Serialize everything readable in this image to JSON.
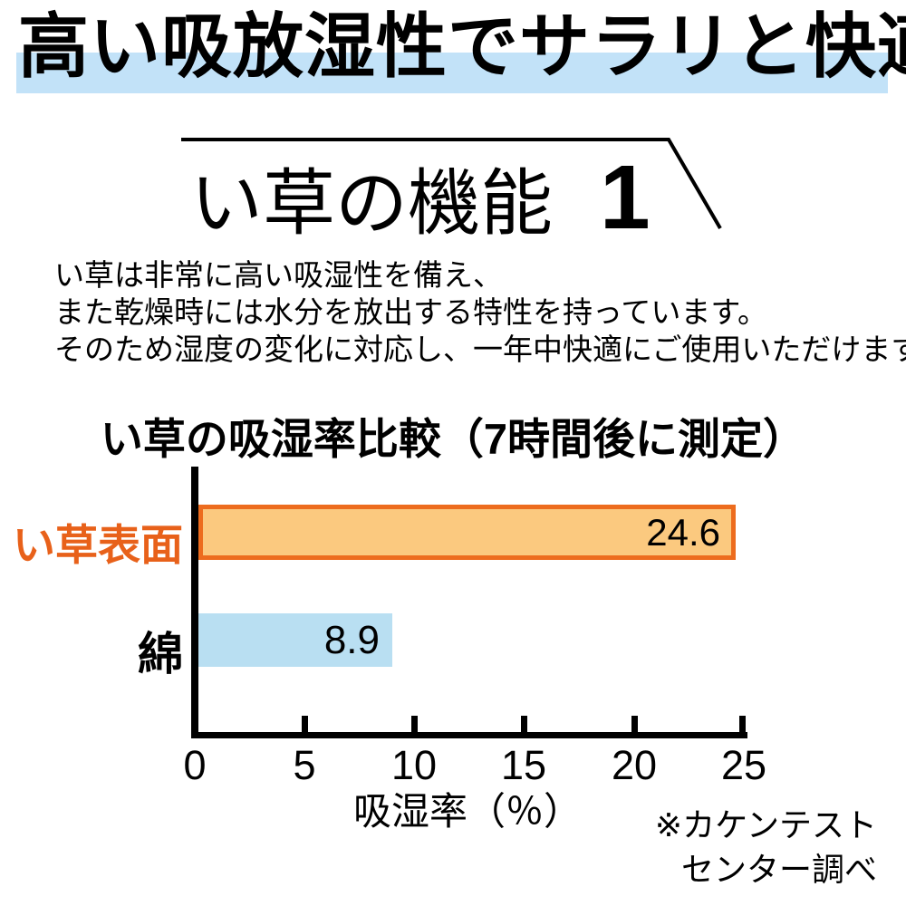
{
  "header": {
    "headline": "高い吸放湿性でサラリと快適。",
    "highlight_color": "#C2E2F8"
  },
  "feature_title": {
    "text": "い草の機能",
    "number": "1"
  },
  "intro": {
    "lines": [
      "い草は非常に高い吸湿性を備え、",
      "また乾燥時には水分を放出する特性を持っています。",
      "そのため湿度の変化に対応し、一年中快適にご使用いただけます。"
    ]
  },
  "chart": {
    "title": "い草の吸湿率比較（7時間後に測定）",
    "xlabel": "吸湿率（％）",
    "ticks": [
      "0",
      "5",
      "10",
      "15",
      "20",
      "25"
    ],
    "bars": [
      {
        "label": "い草表面",
        "value": "24.6",
        "fill": "#FBC97F",
        "border": "#ED6C1E",
        "label_color": "#E8611A"
      },
      {
        "label": "綿",
        "value": "8.9",
        "fill": "#B9DFF2",
        "border": "none",
        "label_color": "#000000"
      }
    ],
    "note_lines": [
      "※カケンテスト",
      "センター調べ"
    ]
  },
  "chart_data": {
    "type": "bar",
    "orientation": "horizontal",
    "title": "い草の吸湿率比較（7時間後に測定）",
    "categories": [
      "い草表面",
      "綿"
    ],
    "values": [
      24.6,
      8.9
    ],
    "xlabel": "吸湿率（％）",
    "xlim": [
      0,
      25
    ],
    "xticks": [
      0,
      5,
      10,
      15,
      20,
      25
    ],
    "grid": false,
    "legend": false,
    "bar_colors": [
      "#FBC97F",
      "#B9DFF2"
    ],
    "annotations": [
      "※カケンテストセンター調べ"
    ]
  },
  "colors": {
    "accent_orange": "#ED6C1E",
    "orange_fill": "#FBC97F",
    "blue_fill": "#B9DFF2",
    "highlight_blue": "#C2E2F8"
  }
}
